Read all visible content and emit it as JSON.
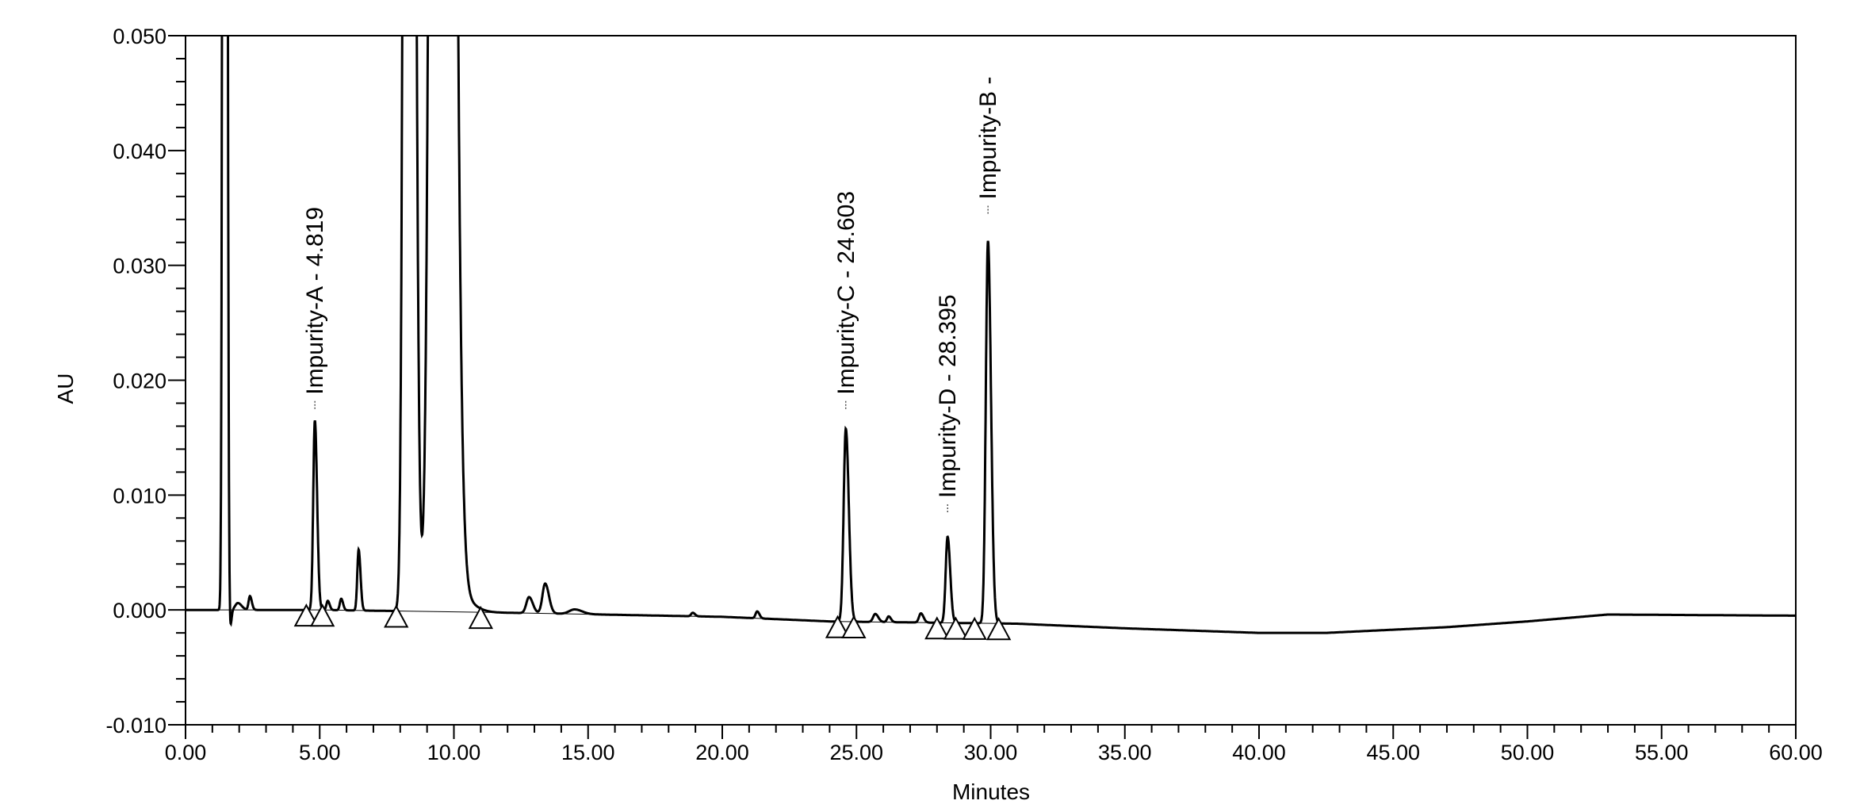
{
  "chart_data": {
    "type": "line",
    "title": "",
    "xlabel": "Minutes",
    "ylabel": "AU",
    "xlim": [
      0,
      60
    ],
    "ylim": [
      -0.01,
      0.05
    ],
    "x_ticks": [
      "0.00",
      "5.00",
      "10.00",
      "15.00",
      "20.00",
      "25.00",
      "30.00",
      "35.00",
      "40.00",
      "45.00",
      "50.00",
      "55.00",
      "60.00"
    ],
    "x_tick_values": [
      0,
      5,
      10,
      15,
      20,
      25,
      30,
      35,
      40,
      45,
      50,
      55,
      60
    ],
    "y_ticks": [
      "0.050",
      "0.040",
      "0.030",
      "0.020",
      "0.010",
      "0.000",
      "-0.010"
    ],
    "y_tick_values": [
      0.05,
      0.04,
      0.03,
      0.02,
      0.01,
      0.0,
      -0.01
    ],
    "grid": false,
    "baseline": [
      [
        0,
        0
      ],
      [
        5,
        0
      ],
      [
        11,
        -0.0002
      ],
      [
        20,
        -0.0006
      ],
      [
        24,
        -0.001
      ],
      [
        31,
        -0.0012
      ],
      [
        35,
        -0.0016
      ],
      [
        40,
        -0.002
      ],
      [
        42.5,
        -0.002
      ],
      [
        47,
        -0.0015
      ],
      [
        50,
        -0.001
      ],
      [
        53,
        -0.0004
      ],
      [
        60,
        -0.0005
      ]
    ],
    "peaks": [
      {
        "rt": 1.45,
        "height": 0.3,
        "sigma": 0.05
      },
      {
        "rt": 1.62,
        "height": -0.0045,
        "sigma": 0.04
      },
      {
        "rt": 1.95,
        "height": 0.0006,
        "sigma": 0.1
      },
      {
        "rt": 2.4,
        "height": 0.0012,
        "sigma": 0.05
      },
      {
        "rt": 4.819,
        "height": 0.0165,
        "sigma": 0.06
      },
      {
        "rt": 5.3,
        "height": 0.0008,
        "sigma": 0.05
      },
      {
        "rt": 5.8,
        "height": 0.001,
        "sigma": 0.05
      },
      {
        "rt": 6.45,
        "height": 0.0053,
        "sigma": 0.05
      },
      {
        "rt": 8.3,
        "height": 0.3,
        "sigma": 0.12
      },
      {
        "rt": 9.5,
        "height": 0.5,
        "sigma": 0.22
      },
      {
        "rt": 10.2,
        "height": 0.0012,
        "sigma": 0.35
      },
      {
        "rt": 12.8,
        "height": 0.0014,
        "sigma": 0.1
      },
      {
        "rt": 13.4,
        "height": 0.0026,
        "sigma": 0.1
      },
      {
        "rt": 14.5,
        "height": 0.0004,
        "sigma": 0.2
      },
      {
        "rt": 18.9,
        "height": 0.0003,
        "sigma": 0.06
      },
      {
        "rt": 21.3,
        "height": 0.0006,
        "sigma": 0.06
      },
      {
        "rt": 24.603,
        "height": 0.0168,
        "sigma": 0.08
      },
      {
        "rt": 25.7,
        "height": 0.0007,
        "sigma": 0.08
      },
      {
        "rt": 26.2,
        "height": 0.0005,
        "sigma": 0.06
      },
      {
        "rt": 27.4,
        "height": 0.0008,
        "sigma": 0.07
      },
      {
        "rt": 28.395,
        "height": 0.0075,
        "sigma": 0.07
      },
      {
        "rt": 29.9,
        "height": 0.0333,
        "sigma": 0.08
      }
    ],
    "integration_markers": [
      4.5,
      5.1,
      7.85,
      11.0,
      24.3,
      24.9,
      28.0,
      28.7,
      29.4,
      30.3
    ],
    "annotations": [
      {
        "text": "Impurity-A - 4.819",
        "rt": 4.819,
        "y": 0.0175
      },
      {
        "text": "Impurity-C - 24.603",
        "rt": 24.603,
        "y": 0.0175
      },
      {
        "text": "Impurity-D - 28.395",
        "rt": 28.395,
        "y": 0.0085
      },
      {
        "text": "Impurity-B -",
        "rt": 29.9,
        "y": 0.0345
      }
    ]
  }
}
